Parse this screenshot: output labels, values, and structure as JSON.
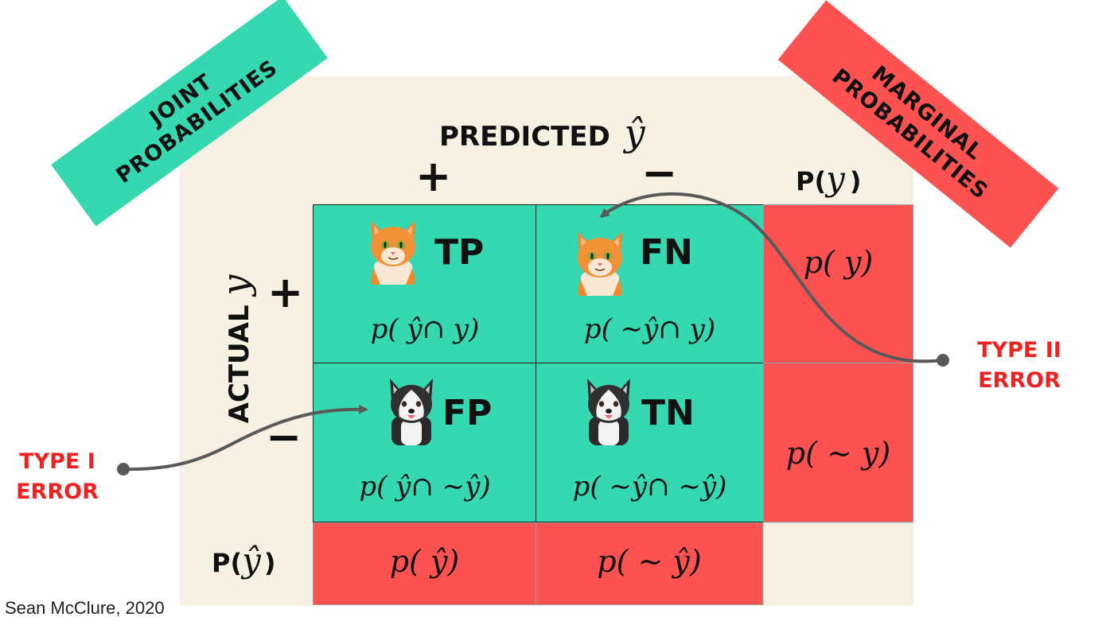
{
  "banners": {
    "joint": {
      "line1": "JOINT",
      "line2": "PROBABILITIES",
      "color": "#35d8b0"
    },
    "marginal": {
      "line1": "MARGINAL",
      "line2": "PROBABILITIES",
      "color": "#fd5252"
    }
  },
  "axes": {
    "predicted_label": "PREDICTED",
    "predicted_symbol": "ŷ",
    "actual_label": "ACTUAL",
    "actual_symbol": "y",
    "col_plus": "+",
    "col_minus": "−",
    "row_plus": "+",
    "row_minus": "−",
    "py_prefix": "P(",
    "py_symbol": "y",
    "py_suffix": ")",
    "pyhat_prefix": "P(",
    "pyhat_symbol": "ŷ",
    "pyhat_suffix": ")"
  },
  "cells": {
    "tp": {
      "label": "TP",
      "formula": "p( ŷ∩ y)",
      "icon": "cat-face"
    },
    "fn": {
      "label": "FN",
      "formula": "p( ∼ŷ∩ y)",
      "icon": "cat-face"
    },
    "fp": {
      "label": "FP",
      "formula": "p( ŷ∩ ∼ŷ)",
      "icon": "husky-face"
    },
    "tn": {
      "label": "TN",
      "formula": "p( ∼ŷ∩ ∼ŷ)",
      "icon": "husky-face"
    }
  },
  "marginals": {
    "row_plus": "p( y)",
    "row_minus": "p( ∼ y)",
    "col_plus": "p( ŷ)",
    "col_minus": "p( ∼ ŷ)"
  },
  "errors": {
    "type1": {
      "line1": "TYPE I",
      "line2": "ERROR"
    },
    "type2": {
      "line1": "TYPE II",
      "line2": "ERROR"
    },
    "color": "#ef2222"
  },
  "credit": "Sean McClure, 2020",
  "colors": {
    "green": "#35d8b0",
    "red": "#fd5252",
    "panel": "#f7f1e4",
    "arrow": "#595959"
  }
}
